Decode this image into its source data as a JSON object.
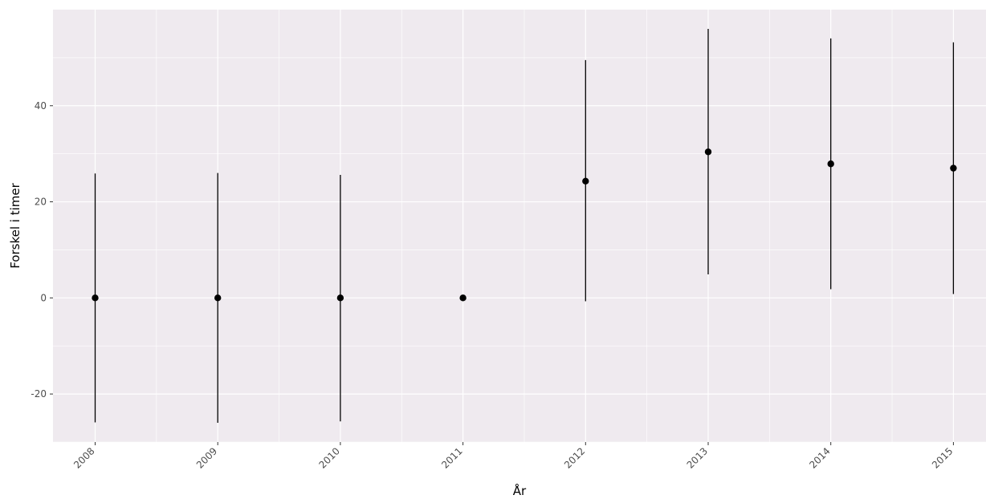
{
  "chart_data": {
    "type": "pointrange",
    "xlabel": "År",
    "ylabel": "Forskel i timer",
    "categories": [
      "2008",
      "2009",
      "2010",
      "2011",
      "2012",
      "2013",
      "2014",
      "2015"
    ],
    "estimates": [
      0,
      0,
      0,
      0,
      24.3,
      30.4,
      27.9,
      27.0
    ],
    "lower": [
      -25.9,
      -26.0,
      -25.7,
      0,
      -0.7,
      4.9,
      1.8,
      0.8
    ],
    "upper": [
      25.9,
      26.0,
      25.6,
      0,
      49.5,
      56.0,
      54.0,
      53.2
    ],
    "yticks": [
      -20,
      0,
      20,
      40
    ],
    "ylim": [
      -30,
      60
    ],
    "grid": true,
    "panel_color": "#EFEAEF",
    "grid_color": "#FFFFFF",
    "mark_color": "#000000"
  }
}
